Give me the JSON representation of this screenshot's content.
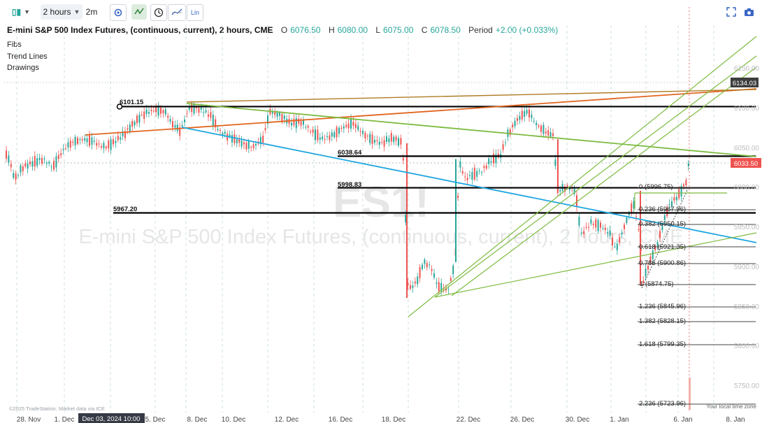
{
  "toolbar": {
    "interval": "2 hours",
    "replay_interval": "2m",
    "scale_label": "Lin"
  },
  "symbol": {
    "title": "E-mini S&P 500 Index Futures, (continuous, current), 2 hours, CME",
    "open_label": "O",
    "open": "6076.50",
    "high_label": "H",
    "high": "6080.00",
    "low_label": "L",
    "low": "6075.00",
    "close_label": "C",
    "close": "6078.50",
    "period_label": "Period",
    "period_change": "+2.00 (+0.033%)"
  },
  "panel_items": [
    "Fibs",
    "Trend Lines",
    "Drawings"
  ],
  "watermark": {
    "ticker": "ES1!",
    "name": "E-mini S&P 500 Index Futures, (continuous, current), 2 hours, CME"
  },
  "price_axis": {
    "ticks": [
      "6150.00",
      "6100.00",
      "6050.00",
      "6000.00",
      "5950.00",
      "5900.00",
      "5850.00",
      "5800.00",
      "5750.00"
    ],
    "tag_upper": "6134.03",
    "tag_upper_color": "#3d3d3d",
    "tag_last": "6033.50",
    "tag_last_color": "#ef5350"
  },
  "time_axis": {
    "labels": [
      "28. Nov",
      "1. Dec",
      "5. Dec",
      "8. Dec",
      "10. Dec",
      "12. Dec",
      "16. Dec",
      "18. Dec",
      "22. Dec",
      "26. Dec",
      "30. Dec",
      "1. Jan",
      "6. Jan",
      "8. Jan"
    ],
    "cursor_label": "Dec 03, 2024 10:00"
  },
  "levels": [
    {
      "label": "6101.15"
    },
    {
      "label": "6038.64"
    },
    {
      "label": "5998.83"
    },
    {
      "label": "5967.20"
    }
  ],
  "fib": {
    "labels": [
      "0 (5996.75)",
      "0.236 (5967.96)",
      "0.382 (5950.15)",
      "0.618 (5921.35)",
      "0.786 (5900.86)",
      "1 (5874.75)",
      "1.236 (5845.96)",
      "1.382 (5828.15)",
      "1.618 (5799.35)",
      "2.236 (5723.96)"
    ]
  },
  "footer": {
    "copyright": "©2025 TradeStation. Market data via ICE",
    "tz_label": "Your local time zone"
  },
  "colors": {
    "bull": "#26a69a",
    "bear": "#ef5350",
    "trend_green": "#7cbb3f",
    "trend_blue": "#1ea7e1",
    "trend_orange": "#e2651f",
    "level_black": "#000000"
  }
}
